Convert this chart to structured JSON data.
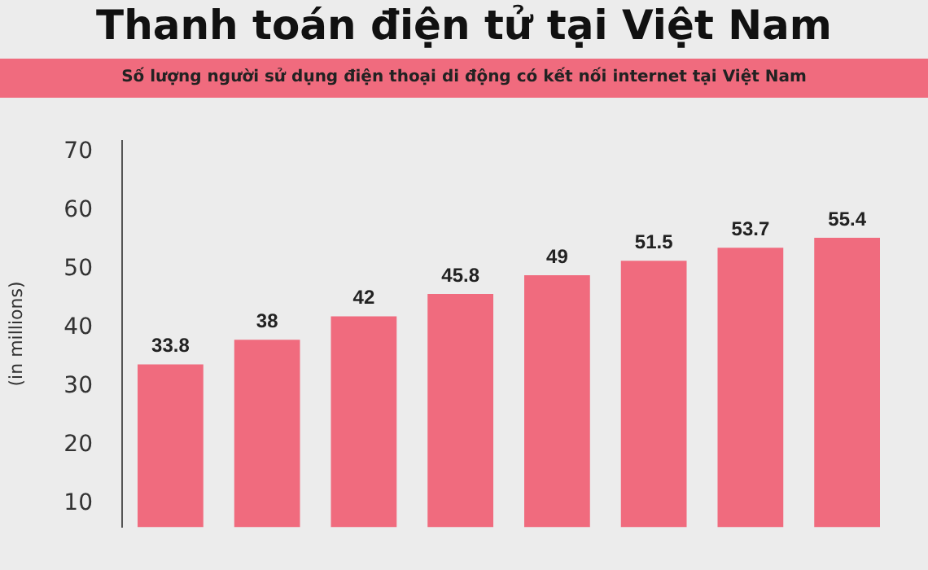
{
  "chart_data": {
    "type": "bar",
    "title": "Thanh toán điện tử tại Việt Nam",
    "subtitle": "Số lượng người sử dụng điện thoại di động có kết nối internet tại Việt Nam",
    "ylabel": "(in millions)",
    "categories": [
      null,
      null,
      null,
      null,
      null,
      null,
      null,
      null
    ],
    "values": [
      33.8,
      38,
      42,
      45.8,
      49,
      51.5,
      53.7,
      55.4
    ],
    "color": "#f06b7e",
    "ylim": [
      6,
      72
    ],
    "yticks": [
      10,
      20,
      30,
      40,
      50,
      60,
      70
    ],
    "grid": false,
    "data_labels": true,
    "legend": false
  }
}
